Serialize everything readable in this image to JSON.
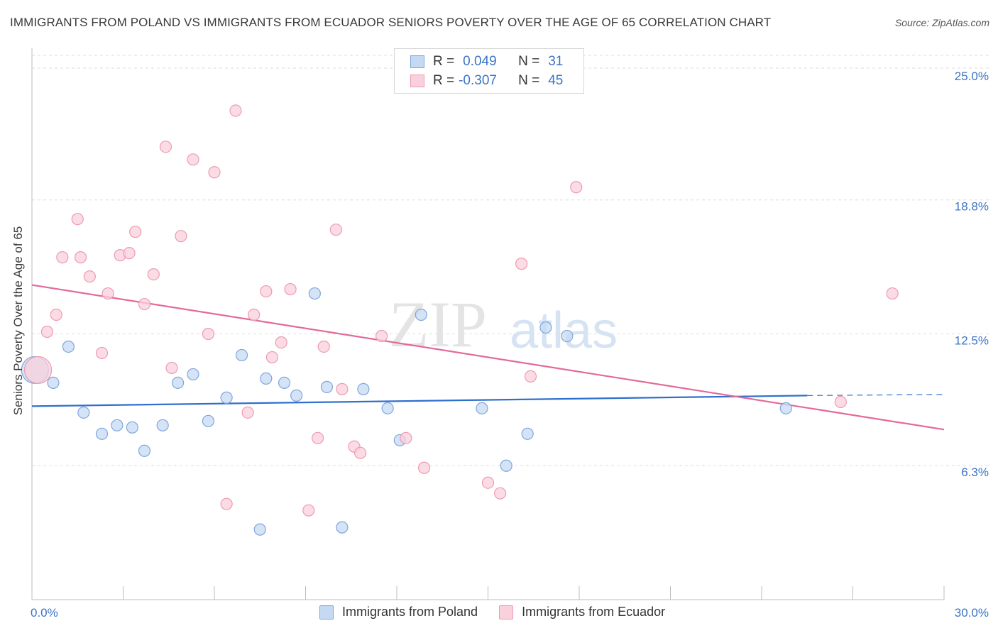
{
  "header": {
    "title": "IMMIGRANTS FROM POLAND VS IMMIGRANTS FROM ECUADOR SENIORS POVERTY OVER THE AGE OF 65 CORRELATION CHART",
    "source": "Source: ZipAtlas.com"
  },
  "watermark": {
    "zip": "ZIP",
    "atlas": "atlas"
  },
  "legend": {
    "poland": {
      "r_label": "R =",
      "r_value": "0.049",
      "n_label": "N =",
      "n_value": "31"
    },
    "ecuador": {
      "r_label": "R =",
      "r_value": "-0.307",
      "n_label": "N =",
      "n_value": "45"
    }
  },
  "colors": {
    "poland_fill": "#c5d9f3",
    "poland_stroke": "#7fa6dd",
    "poland_line": "#2f6fce",
    "ecuador_fill": "#fad0dc",
    "ecuador_stroke": "#ee9ab3",
    "ecuador_line": "#e3699a",
    "tick_text": "#3b74c6",
    "grid": "#dddddd"
  },
  "chart_data": {
    "type": "scatter",
    "title": "IMMIGRANTS FROM POLAND VS IMMIGRANTS FROM ECUADOR SENIORS POVERTY OVER THE AGE OF 65 CORRELATION CHART",
    "xlabel": "",
    "ylabel": "Seniors Poverty Over the Age of 65",
    "xlim": [
      0,
      30
    ],
    "ylim": [
      0,
      25.6
    ],
    "x_tick_labels": [
      "0.0%",
      "30.0%"
    ],
    "y_ticks": [
      6.3,
      12.5,
      18.8,
      25.0
    ],
    "y_tick_labels": [
      "6.3%",
      "12.5%",
      "18.8%",
      "25.0%"
    ],
    "grid": "horizontal dashed",
    "legend_position": "bottom",
    "series": [
      {
        "name": "Immigrants from Poland",
        "r": 0.049,
        "n": 31,
        "trend": {
          "x": [
            0,
            25.5
          ],
          "y": [
            9.1,
            9.6
          ],
          "dashed_extension_to": 30.0,
          "dashed_end_y": 9.65
        },
        "points": [
          {
            "x": 0.1,
            "y": 10.8,
            "size": "large"
          },
          {
            "x": 0.7,
            "y": 10.2
          },
          {
            "x": 1.2,
            "y": 11.9
          },
          {
            "x": 1.7,
            "y": 8.8
          },
          {
            "x": 2.3,
            "y": 7.8
          },
          {
            "x": 2.8,
            "y": 8.2
          },
          {
            "x": 3.3,
            "y": 8.1
          },
          {
            "x": 3.7,
            "y": 7.0
          },
          {
            "x": 4.3,
            "y": 8.2
          },
          {
            "x": 4.8,
            "y": 10.2
          },
          {
            "x": 5.3,
            "y": 10.6
          },
          {
            "x": 5.8,
            "y": 8.4
          },
          {
            "x": 6.4,
            "y": 9.5
          },
          {
            "x": 6.9,
            "y": 11.5
          },
          {
            "x": 7.5,
            "y": 3.3
          },
          {
            "x": 7.7,
            "y": 10.4
          },
          {
            "x": 8.3,
            "y": 10.2
          },
          {
            "x": 8.7,
            "y": 9.6
          },
          {
            "x": 9.3,
            "y": 14.4
          },
          {
            "x": 9.7,
            "y": 10.0
          },
          {
            "x": 10.2,
            "y": 3.4
          },
          {
            "x": 10.9,
            "y": 9.9
          },
          {
            "x": 11.7,
            "y": 9.0
          },
          {
            "x": 12.1,
            "y": 7.5
          },
          {
            "x": 12.8,
            "y": 13.4
          },
          {
            "x": 14.8,
            "y": 9.0
          },
          {
            "x": 15.6,
            "y": 6.3
          },
          {
            "x": 16.3,
            "y": 7.8
          },
          {
            "x": 16.9,
            "y": 12.8
          },
          {
            "x": 17.6,
            "y": 12.4
          },
          {
            "x": 24.8,
            "y": 9.0
          }
        ]
      },
      {
        "name": "Immigrants from Ecuador",
        "r": -0.307,
        "n": 45,
        "trend": {
          "x": [
            0,
            30
          ],
          "y": [
            14.8,
            8.0
          ]
        },
        "points": [
          {
            "x": 0.2,
            "y": 10.8,
            "size": "large"
          },
          {
            "x": 0.5,
            "y": 12.6
          },
          {
            "x": 0.8,
            "y": 13.4
          },
          {
            "x": 1.0,
            "y": 16.1
          },
          {
            "x": 1.5,
            "y": 17.9
          },
          {
            "x": 1.6,
            "y": 16.1
          },
          {
            "x": 1.9,
            "y": 15.2
          },
          {
            "x": 2.3,
            "y": 11.6
          },
          {
            "x": 2.5,
            "y": 14.4
          },
          {
            "x": 2.9,
            "y": 16.2
          },
          {
            "x": 3.2,
            "y": 16.3
          },
          {
            "x": 3.4,
            "y": 17.3
          },
          {
            "x": 3.7,
            "y": 13.9
          },
          {
            "x": 4.0,
            "y": 15.3
          },
          {
            "x": 4.4,
            "y": 21.3
          },
          {
            "x": 4.6,
            "y": 10.9
          },
          {
            "x": 4.9,
            "y": 17.1
          },
          {
            "x": 5.3,
            "y": 20.7
          },
          {
            "x": 5.8,
            "y": 12.5
          },
          {
            "x": 6.0,
            "y": 20.1
          },
          {
            "x": 6.4,
            "y": 4.5
          },
          {
            "x": 6.7,
            "y": 23.0
          },
          {
            "x": 7.1,
            "y": 8.8
          },
          {
            "x": 7.3,
            "y": 13.4
          },
          {
            "x": 7.7,
            "y": 14.5
          },
          {
            "x": 7.9,
            "y": 11.4
          },
          {
            "x": 8.2,
            "y": 12.1
          },
          {
            "x": 8.5,
            "y": 14.6
          },
          {
            "x": 9.1,
            "y": 4.2
          },
          {
            "x": 9.4,
            "y": 7.6
          },
          {
            "x": 9.6,
            "y": 11.9
          },
          {
            "x": 10.0,
            "y": 17.4
          },
          {
            "x": 10.2,
            "y": 9.9
          },
          {
            "x": 10.6,
            "y": 7.2
          },
          {
            "x": 10.8,
            "y": 6.9
          },
          {
            "x": 11.5,
            "y": 12.4
          },
          {
            "x": 12.3,
            "y": 7.6
          },
          {
            "x": 12.9,
            "y": 6.2
          },
          {
            "x": 15.0,
            "y": 5.5
          },
          {
            "x": 15.4,
            "y": 5.0
          },
          {
            "x": 16.1,
            "y": 15.8
          },
          {
            "x": 16.4,
            "y": 10.5
          },
          {
            "x": 17.9,
            "y": 19.4
          },
          {
            "x": 26.6,
            "y": 9.3
          },
          {
            "x": 28.3,
            "y": 14.4
          }
        ]
      }
    ]
  },
  "bottom_legend": {
    "poland_label": "Immigrants from Poland",
    "ecuador_label": "Immigrants from Ecuador"
  }
}
